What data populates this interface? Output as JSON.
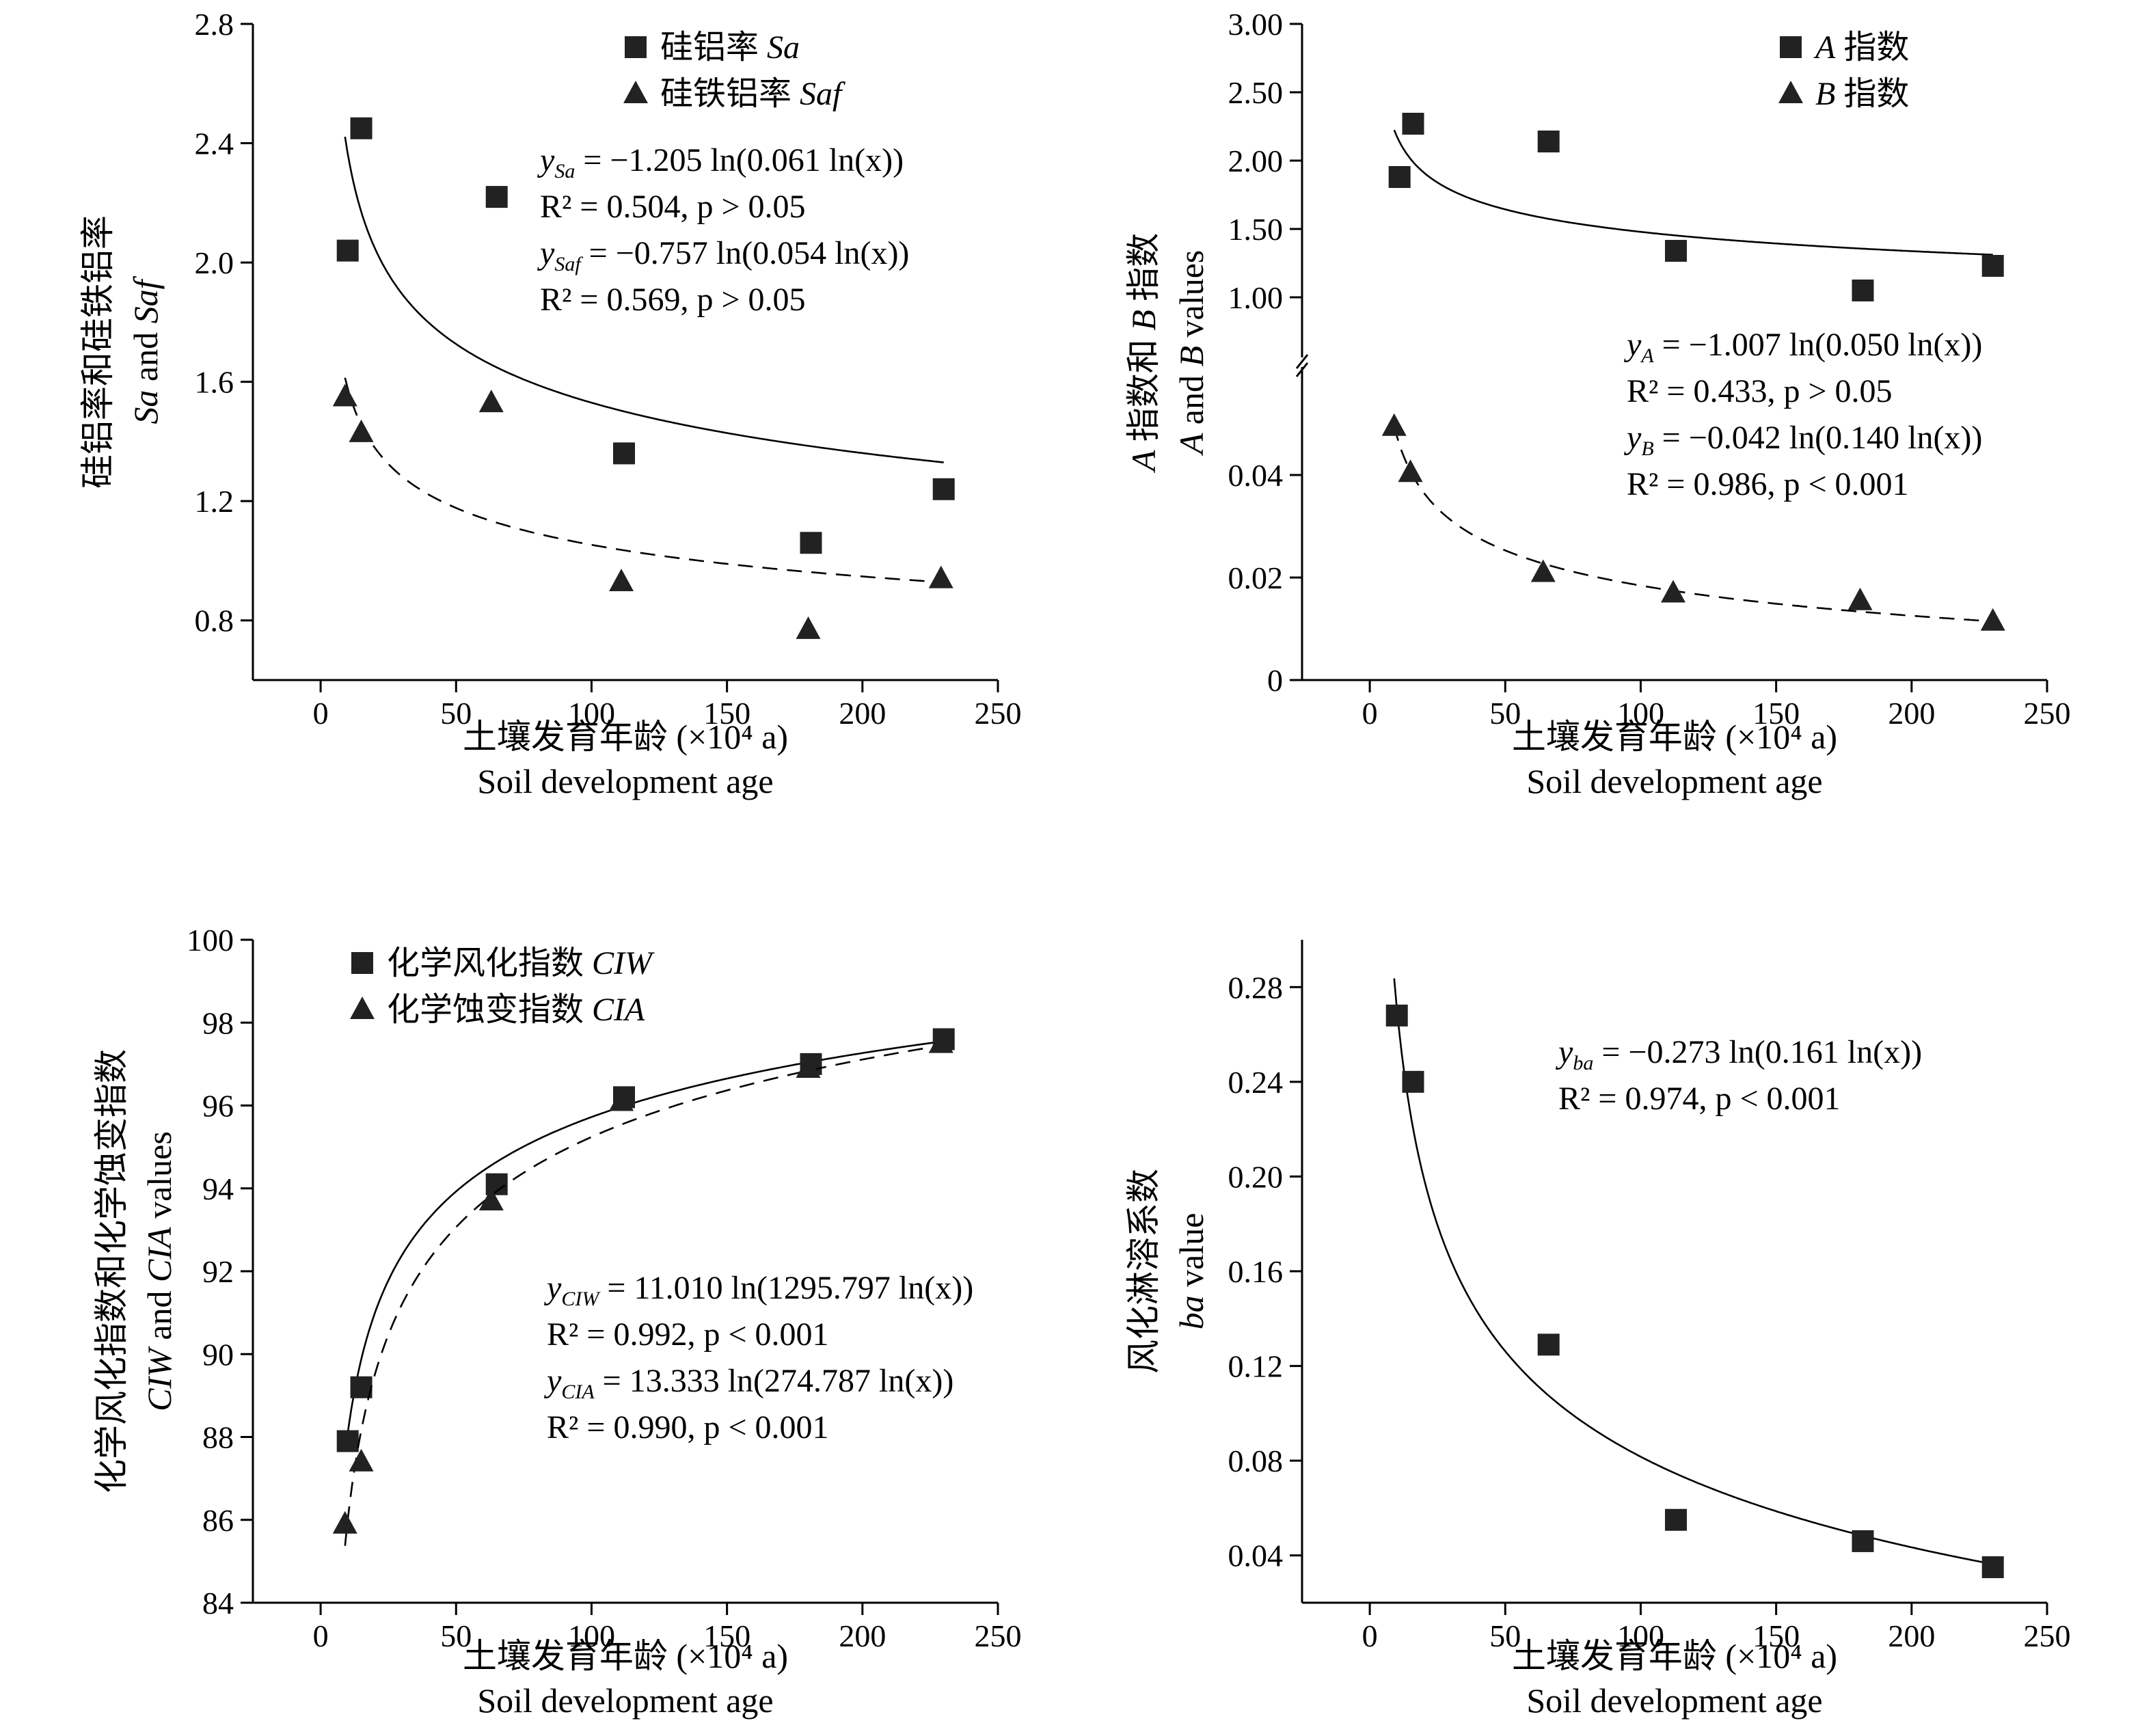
{
  "chart_data": [
    {
      "id": "sa",
      "type": "scatter",
      "title": "",
      "xlabel": "土壤发育年龄 (×10⁴ a)",
      "xlabel2": "Soil development age",
      "ylabel": "硅铝率和硅铁铝率",
      "ylabel2": "Sa and Saf",
      "xlim": [
        -25,
        250
      ],
      "ylim": [
        0.6,
        2.8
      ],
      "xticks": [
        0,
        50,
        100,
        150,
        200,
        250
      ],
      "yticks": [
        0.8,
        1.2,
        1.6,
        2.0,
        2.4,
        2.8
      ],
      "ytick_labels": [
        "0.8",
        "1.2",
        "1.6",
        "2.0",
        "2.4",
        "2.8"
      ],
      "legend": "top-center",
      "series": [
        {
          "name": "硅铝率 Sa",
          "marker": "square",
          "x": [
            10,
            15,
            65,
            112,
            181,
            230
          ],
          "y": [
            2.04,
            2.45,
            2.22,
            1.36,
            1.06,
            1.24
          ],
          "fit": {
            "a": -1.205,
            "b": 0.061,
            "style": "solid",
            "xrange": [
              9,
              230
            ]
          }
        },
        {
          "name": "硅铁铝率 Saf",
          "marker": "triangle",
          "x": [
            9,
            15,
            63,
            111,
            180,
            229
          ],
          "y": [
            1.55,
            1.43,
            1.53,
            0.93,
            0.77,
            0.94
          ],
          "fit": {
            "a": -0.757,
            "b": 0.054,
            "style": "dashed",
            "xrange": [
              9,
              229
            ]
          }
        }
      ],
      "annotations": [
        {
          "var": "y",
          "sub": "Sa",
          "rhs": "= −1.205 ln(0.061 ln(x))"
        },
        {
          "r2": "R² = 0.504, p > 0.05"
        },
        {
          "var": "y",
          "sub": "Saf",
          "rhs": "= −0.757 ln(0.054 ln(x))"
        },
        {
          "r2": "R² = 0.569, p > 0.05"
        }
      ]
    },
    {
      "id": "ab",
      "type": "scatter",
      "title": "",
      "xlabel": "土壤发育年龄 (×10⁴ a)",
      "xlabel2": "Soil development age",
      "ylabel": "A 指数和 B 指数",
      "ylabel2": "A and B values",
      "xlim": [
        -25,
        250
      ],
      "ylim_lower": [
        0,
        0.06
      ],
      "ylim_upper": [
        0.6,
        3.0
      ],
      "axis_break": true,
      "xticks": [
        0,
        50,
        100,
        150,
        200,
        250
      ],
      "yticks_lower": [
        0,
        0.02,
        0.04
      ],
      "ytick_labels_lower": [
        "0",
        "0.02",
        "0.04"
      ],
      "yticks_upper": [
        1.0,
        1.5,
        2.0,
        2.5,
        3.0
      ],
      "ytick_labels_upper": [
        "1.00",
        "1.50",
        "2.00",
        "2.50",
        "3.00"
      ],
      "legend": "top-right",
      "series": [
        {
          "name": "A 指数",
          "marker": "square",
          "x": [
            11,
            16,
            66,
            113,
            182,
            230
          ],
          "y": [
            1.88,
            2.27,
            2.14,
            1.34,
            1.05,
            1.23
          ],
          "fit": {
            "a": -1.007,
            "b": 0.05,
            "style": "solid",
            "xrange": [
              9,
              230
            ]
          }
        },
        {
          "name": "B 指数",
          "marker": "triangle",
          "x": [
            9,
            15,
            64,
            112,
            181,
            230
          ],
          "y": [
            0.0495,
            0.0405,
            0.021,
            0.017,
            0.0155,
            0.0115
          ],
          "fit": {
            "a": -0.042,
            "b": 0.14,
            "style": "dashed",
            "xrange": [
              9,
              230
            ]
          }
        }
      ],
      "annotations": [
        {
          "var": "y",
          "sub": "A",
          "rhs": "= −1.007 ln(0.050 ln(x))"
        },
        {
          "r2": "R² = 0.433, p > 0.05"
        },
        {
          "var": "y",
          "sub": "B",
          "rhs": "= −0.042 ln(0.140 ln(x))"
        },
        {
          "r2": "R² = 0.986, p < 0.001"
        }
      ]
    },
    {
      "id": "ciw",
      "type": "scatter",
      "title": "",
      "xlabel": "土壤发育年龄 (×10⁴ a)",
      "xlabel2": "Soil development age",
      "ylabel": "化学风化指数和化学蚀变指数",
      "ylabel2": "CIW and CIA values",
      "xlim": [
        -25,
        250
      ],
      "ylim": [
        84,
        100
      ],
      "xticks": [
        0,
        50,
        100,
        150,
        200,
        250
      ],
      "yticks": [
        84,
        86,
        88,
        90,
        92,
        94,
        96,
        98,
        100
      ],
      "ytick_labels": [
        "84",
        "86",
        "88",
        "90",
        "92",
        "94",
        "96",
        "98",
        "100"
      ],
      "legend": "top-left",
      "series": [
        {
          "name": "化学风化指数 CIW",
          "marker": "square",
          "x": [
            10,
            15,
            65,
            112,
            181,
            230
          ],
          "y": [
            87.9,
            89.2,
            94.1,
            96.2,
            97.0,
            97.6
          ],
          "fit": {
            "a": 11.01,
            "b": 1295.797,
            "style": "solid",
            "xrange": [
              9.5,
              230
            ]
          }
        },
        {
          "name": "化学蚀变指数 CIA",
          "marker": "triangle",
          "x": [
            9,
            15,
            63,
            111,
            180,
            229
          ],
          "y": [
            85.9,
            87.4,
            93.7,
            96.1,
            96.9,
            97.5
          ],
          "fit": {
            "a": 13.333,
            "b": 274.787,
            "style": "dashed",
            "xrange": [
              9,
              230
            ]
          }
        }
      ],
      "annotations": [
        {
          "var": "y",
          "sub": "CIW",
          "rhs": "= 11.010 ln(1295.797 ln(x))"
        },
        {
          "r2": "R² = 0.992, p < 0.001"
        },
        {
          "var": "y",
          "sub": "CIA",
          "rhs": "= 13.333 ln(274.787 ln(x))"
        },
        {
          "r2": "R² = 0.990, p < 0.001"
        }
      ]
    },
    {
      "id": "ba",
      "type": "scatter",
      "title": "",
      "xlabel": "土壤发育年龄 (×10⁴ a)",
      "xlabel2": "Soil development age",
      "ylabel": "风化淋溶系数",
      "ylabel2": "ba value",
      "xlim": [
        -25,
        250
      ],
      "ylim": [
        0.02,
        0.3
      ],
      "xticks": [
        0,
        50,
        100,
        150,
        200,
        250
      ],
      "yticks": [
        0.04,
        0.08,
        0.12,
        0.16,
        0.2,
        0.24,
        0.28
      ],
      "ytick_labels": [
        "0.04",
        "0.08",
        "0.12",
        "0.16",
        "0.20",
        "0.24",
        "0.28"
      ],
      "legend": "none",
      "series": [
        {
          "name": "",
          "marker": "square",
          "x": [
            10,
            16,
            66,
            113,
            182,
            230
          ],
          "y": [
            0.268,
            0.24,
            0.129,
            0.055,
            0.046,
            0.035
          ],
          "fit": {
            "a": -0.273,
            "b": 0.161,
            "style": "solid",
            "xrange": [
              9,
              230
            ]
          }
        }
      ],
      "annotations": [
        {
          "var": "y",
          "sub": "ba",
          "rhs": "= −0.273 ln(0.161 ln(x))"
        },
        {
          "r2": "R² = 0.974, p < 0.001"
        }
      ]
    }
  ]
}
